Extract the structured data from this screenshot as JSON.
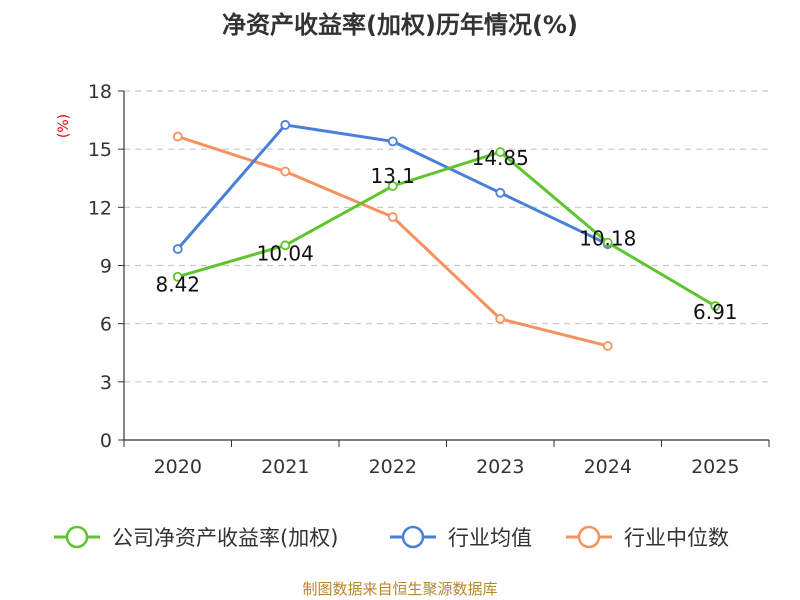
{
  "chart_data": {
    "type": "line",
    "title": "净资产收益率(加权)历年情况(%)",
    "ylabel": "(%)",
    "xlabel": "",
    "categories": [
      "2020",
      "2021",
      "2022",
      "2023",
      "2024",
      "2025"
    ],
    "ylim": [
      0,
      18
    ],
    "yticks": [
      "0",
      "3",
      "6",
      "9",
      "12",
      "15",
      "18"
    ],
    "grid": true,
    "legend_position": "bottom",
    "series": [
      {
        "name": "公司净资产收益率(加权)",
        "color": "#5ec52d",
        "values": [
          8.42,
          10.04,
          13.1,
          14.85,
          10.18,
          6.91
        ],
        "labels": [
          "8.42",
          "10.04",
          "13.1",
          "14.85",
          "10.18",
          "6.91"
        ]
      },
      {
        "name": "行业均值",
        "color": "#4a7fd9",
        "values": [
          9.85,
          16.25,
          15.4,
          12.75,
          10.1,
          null
        ]
      },
      {
        "name": "行业中位数",
        "color": "#f5925e",
        "values": [
          15.65,
          13.85,
          11.5,
          6.25,
          4.85,
          null
        ]
      }
    ]
  },
  "source": "制图数据来自恒生聚源数据库"
}
